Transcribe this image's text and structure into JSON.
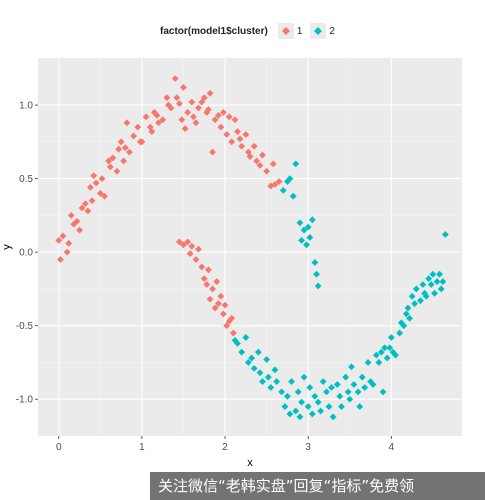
{
  "chart_data": {
    "type": "scatter",
    "xlabel": "x",
    "ylabel": "y",
    "xlim": [
      -0.25,
      4.85
    ],
    "ylim": [
      -1.25,
      1.32
    ],
    "xticks": [
      0,
      1,
      2,
      3,
      4
    ],
    "yticks": [
      -1.0,
      -0.5,
      0.0,
      0.5,
      1.0
    ],
    "xtick_labels": [
      "0",
      "1",
      "2",
      "3",
      "4"
    ],
    "ytick_labels": [
      "-1.0",
      "-0.5",
      "0.0",
      "0.5",
      "1.0"
    ],
    "grid": true,
    "legend": {
      "title": "factor(model1$cluster)",
      "placement": "top",
      "entries": [
        "1",
        "2"
      ]
    },
    "series": [
      {
        "name": "1",
        "color": "#F8766D",
        "marker": "diamond",
        "points": [
          [
            0.0,
            0.08
          ],
          [
            0.02,
            -0.05
          ],
          [
            0.05,
            0.11
          ],
          [
            0.1,
            0.0
          ],
          [
            0.12,
            0.06
          ],
          [
            0.15,
            0.25
          ],
          [
            0.18,
            0.19
          ],
          [
            0.22,
            0.21
          ],
          [
            0.25,
            0.15
          ],
          [
            0.28,
            0.3
          ],
          [
            0.32,
            0.33
          ],
          [
            0.35,
            0.28
          ],
          [
            0.38,
            0.44
          ],
          [
            0.4,
            0.35
          ],
          [
            0.42,
            0.52
          ],
          [
            0.45,
            0.47
          ],
          [
            0.5,
            0.4
          ],
          [
            0.52,
            0.5
          ],
          [
            0.55,
            0.38
          ],
          [
            0.6,
            0.62
          ],
          [
            0.62,
            0.58
          ],
          [
            0.65,
            0.64
          ],
          [
            0.7,
            0.55
          ],
          [
            0.72,
            0.7
          ],
          [
            0.75,
            0.75
          ],
          [
            0.78,
            0.62
          ],
          [
            0.8,
            0.71
          ],
          [
            0.82,
            0.88
          ],
          [
            0.85,
            0.68
          ],
          [
            0.9,
            0.79
          ],
          [
            0.95,
            0.85
          ],
          [
            0.98,
            0.75
          ],
          [
            1.0,
            0.75
          ],
          [
            1.05,
            0.92
          ],
          [
            1.1,
            0.85
          ],
          [
            1.12,
            0.82
          ],
          [
            1.15,
            0.95
          ],
          [
            1.18,
            0.93
          ],
          [
            1.2,
            0.88
          ],
          [
            1.25,
            0.9
          ],
          [
            1.3,
            1.05
          ],
          [
            1.32,
            1.0
          ],
          [
            1.35,
            0.98
          ],
          [
            1.4,
            1.18
          ],
          [
            1.42,
            1.05
          ],
          [
            1.45,
            1.01
          ],
          [
            1.48,
            0.9
          ],
          [
            1.5,
            1.12
          ],
          [
            1.52,
            0.84
          ],
          [
            1.55,
            0.95
          ],
          [
            1.6,
            1.02
          ],
          [
            1.62,
            0.92
          ],
          [
            1.65,
            0.88
          ],
          [
            1.68,
            0.98
          ],
          [
            1.72,
            1.02
          ],
          [
            1.75,
            1.05
          ],
          [
            1.78,
            0.95
          ],
          [
            1.8,
            0.97
          ],
          [
            1.82,
            1.08
          ],
          [
            1.85,
            0.68
          ],
          [
            1.88,
            0.9
          ],
          [
            1.92,
            0.93
          ],
          [
            1.95,
            0.85
          ],
          [
            1.98,
            0.95
          ],
          [
            2.02,
            0.8
          ],
          [
            2.05,
            0.92
          ],
          [
            2.08,
            0.75
          ],
          [
            2.12,
            0.9
          ],
          [
            2.15,
            0.82
          ],
          [
            2.18,
            0.77
          ],
          [
            2.2,
            0.72
          ],
          [
            2.25,
            0.8
          ],
          [
            2.28,
            0.68
          ],
          [
            2.3,
            0.65
          ],
          [
            2.35,
            0.72
          ],
          [
            2.38,
            0.62
          ],
          [
            2.42,
            0.59
          ],
          [
            2.45,
            0.66
          ],
          [
            2.5,
            0.55
          ],
          [
            2.55,
            0.45
          ],
          [
            2.58,
            0.6
          ],
          [
            2.6,
            0.46
          ],
          [
            2.65,
            0.48
          ],
          [
            1.45,
            0.07
          ],
          [
            1.5,
            0.05
          ],
          [
            1.55,
            0.07
          ],
          [
            1.58,
            -0.01
          ],
          [
            1.6,
            0.04
          ],
          [
            1.65,
            -0.05
          ],
          [
            1.68,
            0.02
          ],
          [
            1.72,
            -0.1
          ],
          [
            1.75,
            -0.18
          ],
          [
            1.78,
            -0.22
          ],
          [
            1.8,
            -0.12
          ],
          [
            1.82,
            -0.32
          ],
          [
            1.85,
            -0.25
          ],
          [
            1.88,
            -0.38
          ],
          [
            1.9,
            -0.2
          ],
          [
            1.92,
            -0.35
          ],
          [
            1.95,
            -0.3
          ],
          [
            1.98,
            -0.42
          ],
          [
            2.0,
            -0.36
          ],
          [
            2.02,
            -0.5
          ],
          [
            2.05,
            -0.47
          ],
          [
            2.08,
            -0.45
          ],
          [
            2.1,
            -0.55
          ]
        ]
      },
      {
        "name": "2",
        "color": "#00BFC4",
        "marker": "diamond",
        "points": [
          [
            2.7,
            0.42
          ],
          [
            2.75,
            0.48
          ],
          [
            2.78,
            0.5
          ],
          [
            2.82,
            0.38
          ],
          [
            2.85,
            0.6
          ],
          [
            2.9,
            0.2
          ],
          [
            2.92,
            0.08
          ],
          [
            2.95,
            0.15
          ],
          [
            2.98,
            0.05
          ],
          [
            3.0,
            0.17
          ],
          [
            3.02,
            0.1
          ],
          [
            3.05,
            0.22
          ],
          [
            3.08,
            -0.07
          ],
          [
            3.1,
            -0.15
          ],
          [
            3.12,
            -0.23
          ],
          [
            2.12,
            -0.6
          ],
          [
            2.15,
            -0.62
          ],
          [
            2.2,
            -0.68
          ],
          [
            2.25,
            -0.58
          ],
          [
            2.28,
            -0.75
          ],
          [
            2.32,
            -0.72
          ],
          [
            2.35,
            -0.79
          ],
          [
            2.4,
            -0.68
          ],
          [
            2.42,
            -0.82
          ],
          [
            2.45,
            -0.88
          ],
          [
            2.5,
            -0.73
          ],
          [
            2.52,
            -0.85
          ],
          [
            2.55,
            -0.92
          ],
          [
            2.6,
            -0.8
          ],
          [
            2.62,
            -0.88
          ],
          [
            2.68,
            -0.95
          ],
          [
            2.72,
            -1.05
          ],
          [
            2.75,
            -0.98
          ],
          [
            2.78,
            -1.1
          ],
          [
            2.8,
            -0.88
          ],
          [
            2.85,
            -1.08
          ],
          [
            2.88,
            -0.95
          ],
          [
            2.9,
            -1.12
          ],
          [
            2.92,
            -1.02
          ],
          [
            2.95,
            -0.85
          ],
          [
            3.0,
            -1.05
          ],
          [
            3.02,
            -0.92
          ],
          [
            3.05,
            -1.1
          ],
          [
            3.08,
            -0.98
          ],
          [
            3.12,
            -1.02
          ],
          [
            3.15,
            -1.08
          ],
          [
            3.18,
            -0.88
          ],
          [
            3.22,
            -0.95
          ],
          [
            3.25,
            -1.05
          ],
          [
            3.28,
            -0.92
          ],
          [
            3.3,
            -1.12
          ],
          [
            3.35,
            -0.9
          ],
          [
            3.38,
            -0.98
          ],
          [
            3.4,
            -1.05
          ],
          [
            3.45,
            -0.85
          ],
          [
            3.48,
            -0.95
          ],
          [
            3.5,
            -1.0
          ],
          [
            3.52,
            -0.78
          ],
          [
            3.55,
            -0.9
          ],
          [
            3.6,
            -0.95
          ],
          [
            3.62,
            -1.05
          ],
          [
            3.65,
            -0.85
          ],
          [
            3.68,
            -0.92
          ],
          [
            3.72,
            -0.75
          ],
          [
            3.75,
            -0.88
          ],
          [
            3.78,
            -0.9
          ],
          [
            3.82,
            -0.7
          ],
          [
            3.85,
            -0.75
          ],
          [
            3.88,
            -0.68
          ],
          [
            3.9,
            -0.95
          ],
          [
            3.92,
            -0.65
          ],
          [
            3.95,
            -0.72
          ],
          [
            3.98,
            -0.65
          ],
          [
            4.0,
            -0.58
          ],
          [
            4.02,
            -0.68
          ],
          [
            4.05,
            -0.7
          ],
          [
            4.1,
            -0.55
          ],
          [
            4.12,
            -0.48
          ],
          [
            4.15,
            -0.5
          ],
          [
            4.18,
            -0.42
          ],
          [
            4.2,
            -0.38
          ],
          [
            4.22,
            -0.45
          ],
          [
            4.25,
            -0.3
          ],
          [
            4.28,
            -0.35
          ],
          [
            4.3,
            -0.25
          ],
          [
            4.35,
            -0.33
          ],
          [
            4.38,
            -0.22
          ],
          [
            4.4,
            -0.28
          ],
          [
            4.42,
            -0.3
          ],
          [
            4.45,
            -0.18
          ],
          [
            4.48,
            -0.22
          ],
          [
            4.5,
            -0.15
          ],
          [
            4.52,
            -0.28
          ],
          [
            4.55,
            -0.2
          ],
          [
            4.58,
            -0.15
          ],
          [
            4.6,
            -0.25
          ],
          [
            4.62,
            -0.2
          ],
          [
            4.65,
            0.12
          ]
        ]
      }
    ]
  },
  "watermark": "关注微信“老韩实盘”回复“指标”免费领"
}
